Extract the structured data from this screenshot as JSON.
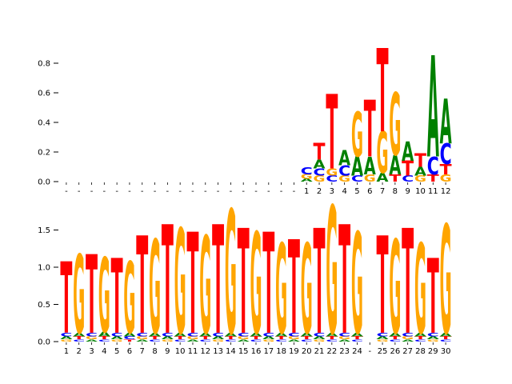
{
  "figure": {
    "background": "#ffffff"
  },
  "letter_colors": {
    "A": "#008000",
    "C": "#0000FF",
    "G": "#FFA500",
    "T": "#FF0000"
  },
  "chart_data": [
    {
      "type": "sequence_logo",
      "panel": "top",
      "title": "",
      "xlabel": "",
      "ylabel": "",
      "grid": false,
      "legend": null,
      "yticks": [
        0.0,
        0.2,
        0.4,
        0.6,
        0.8
      ],
      "ylim": [
        0,
        0.95
      ],
      "columns": [
        {
          "x": "-",
          "stack": []
        },
        {
          "x": "-",
          "stack": []
        },
        {
          "x": "-",
          "stack": []
        },
        {
          "x": "-",
          "stack": []
        },
        {
          "x": "-",
          "stack": []
        },
        {
          "x": "-",
          "stack": []
        },
        {
          "x": "-",
          "stack": []
        },
        {
          "x": "-",
          "stack": []
        },
        {
          "x": "-",
          "stack": []
        },
        {
          "x": "-",
          "stack": []
        },
        {
          "x": "-",
          "stack": []
        },
        {
          "x": "-",
          "stack": []
        },
        {
          "x": "-",
          "stack": []
        },
        {
          "x": "-",
          "stack": []
        },
        {
          "x": "-",
          "stack": []
        },
        {
          "x": "-",
          "stack": []
        },
        {
          "x": "-",
          "stack": []
        },
        {
          "x": "-",
          "stack": []
        },
        {
          "x": "-",
          "stack": []
        },
        {
          "x": "1",
          "stack": [
            [
              "A",
              0.02
            ],
            [
              "G",
              0.03
            ],
            [
              "C",
              0.05
            ]
          ]
        },
        {
          "x": "2",
          "stack": [
            [
              "G",
              0.04
            ],
            [
              "C",
              0.05
            ],
            [
              "A",
              0.06
            ],
            [
              "T",
              0.11
            ]
          ]
        },
        {
          "x": "3",
          "stack": [
            [
              "C",
              0.04
            ],
            [
              "G",
              0.05
            ],
            [
              "T",
              0.5
            ]
          ]
        },
        {
          "x": "4",
          "stack": [
            [
              "G",
              0.04
            ],
            [
              "C",
              0.07
            ],
            [
              "A",
              0.1
            ]
          ]
        },
        {
          "x": "5",
          "stack": [
            [
              "C",
              0.04
            ],
            [
              "A",
              0.13
            ],
            [
              "G",
              0.3
            ]
          ]
        },
        {
          "x": "6",
          "stack": [
            [
              "G",
              0.05
            ],
            [
              "A",
              0.12
            ],
            [
              "T",
              0.38
            ]
          ]
        },
        {
          "x": "7",
          "stack": [
            [
              "A",
              0.06
            ],
            [
              "G",
              0.28
            ],
            [
              "T",
              0.56
            ]
          ]
        },
        {
          "x": "8",
          "stack": [
            [
              "T",
              0.05
            ],
            [
              "A",
              0.13
            ],
            [
              "G",
              0.42
            ]
          ]
        },
        {
          "x": "9",
          "stack": [
            [
              "C",
              0.04
            ],
            [
              "T",
              0.1
            ],
            [
              "A",
              0.13
            ]
          ]
        },
        {
          "x": "10",
          "stack": [
            [
              "G",
              0.04
            ],
            [
              "A",
              0.06
            ],
            [
              "T",
              0.09
            ]
          ]
        },
        {
          "x": "11",
          "stack": [
            [
              "T",
              0.05
            ],
            [
              "C",
              0.12
            ],
            [
              "A",
              0.68
            ]
          ]
        },
        {
          "x": "12",
          "stack": [
            [
              "G",
              0.05
            ],
            [
              "T",
              0.07
            ],
            [
              "C",
              0.14
            ],
            [
              "A",
              0.3
            ]
          ]
        }
      ]
    },
    {
      "type": "sequence_logo",
      "panel": "bottom",
      "title": "",
      "xlabel": "",
      "ylabel": "",
      "grid": false,
      "legend": null,
      "yticks": [
        0.0,
        0.5,
        1.0,
        1.5
      ],
      "ylim": [
        0,
        1.9
      ],
      "columns": [
        {
          "x": "1",
          "stack": [
            [
              "G",
              0.03
            ],
            [
              "A",
              0.04
            ],
            [
              "C",
              0.05
            ],
            [
              "T",
              0.95
            ]
          ]
        },
        {
          "x": "2",
          "stack": [
            [
              "C",
              0.03
            ],
            [
              "T",
              0.04
            ],
            [
              "A",
              0.05
            ],
            [
              "G",
              1.05
            ]
          ]
        },
        {
          "x": "3",
          "stack": [
            [
              "A",
              0.03
            ],
            [
              "G",
              0.04
            ],
            [
              "C",
              0.05
            ],
            [
              "T",
              1.05
            ]
          ]
        },
        {
          "x": "4",
          "stack": [
            [
              "C",
              0.03
            ],
            [
              "T",
              0.04
            ],
            [
              "A",
              0.06
            ],
            [
              "G",
              1.0
            ]
          ]
        },
        {
          "x": "5",
          "stack": [
            [
              "G",
              0.03
            ],
            [
              "A",
              0.04
            ],
            [
              "C",
              0.05
            ],
            [
              "T",
              1.0
            ]
          ]
        },
        {
          "x": "6",
          "stack": [
            [
              "T",
              0.03
            ],
            [
              "C",
              0.04
            ],
            [
              "A",
              0.05
            ],
            [
              "G",
              0.95
            ]
          ]
        },
        {
          "x": "7",
          "stack": [
            [
              "A",
              0.03
            ],
            [
              "G",
              0.04
            ],
            [
              "C",
              0.05
            ],
            [
              "T",
              1.3
            ]
          ]
        },
        {
          "x": "8",
          "stack": [
            [
              "C",
              0.03
            ],
            [
              "T",
              0.04
            ],
            [
              "A",
              0.05
            ],
            [
              "G",
              1.25
            ]
          ]
        },
        {
          "x": "9",
          "stack": [
            [
              "G",
              0.03
            ],
            [
              "A",
              0.04
            ],
            [
              "C",
              0.05
            ],
            [
              "T",
              1.45
            ]
          ]
        },
        {
          "x": "10",
          "stack": [
            [
              "C",
              0.03
            ],
            [
              "T",
              0.04
            ],
            [
              "A",
              0.05
            ],
            [
              "G",
              1.4
            ]
          ]
        },
        {
          "x": "11",
          "stack": [
            [
              "A",
              0.03
            ],
            [
              "G",
              0.04
            ],
            [
              "C",
              0.05
            ],
            [
              "T",
              1.35
            ]
          ]
        },
        {
          "x": "12",
          "stack": [
            [
              "C",
              0.03
            ],
            [
              "T",
              0.04
            ],
            [
              "A",
              0.05
            ],
            [
              "G",
              1.3
            ]
          ]
        },
        {
          "x": "13",
          "stack": [
            [
              "G",
              0.03
            ],
            [
              "A",
              0.04
            ],
            [
              "C",
              0.05
            ],
            [
              "T",
              1.45
            ]
          ]
        },
        {
          "x": "14",
          "stack": [
            [
              "C",
              0.03
            ],
            [
              "T",
              0.04
            ],
            [
              "A",
              0.05
            ],
            [
              "G",
              1.65
            ]
          ]
        },
        {
          "x": "15",
          "stack": [
            [
              "A",
              0.03
            ],
            [
              "G",
              0.04
            ],
            [
              "C",
              0.05
            ],
            [
              "T",
              1.4
            ]
          ]
        },
        {
          "x": "16",
          "stack": [
            [
              "C",
              0.03
            ],
            [
              "T",
              0.04
            ],
            [
              "A",
              0.05
            ],
            [
              "G",
              1.35
            ]
          ]
        },
        {
          "x": "17",
          "stack": [
            [
              "G",
              0.03
            ],
            [
              "A",
              0.04
            ],
            [
              "C",
              0.05
            ],
            [
              "T",
              1.35
            ]
          ]
        },
        {
          "x": "18",
          "stack": [
            [
              "C",
              0.03
            ],
            [
              "T",
              0.04
            ],
            [
              "A",
              0.05
            ],
            [
              "G",
              1.2
            ]
          ]
        },
        {
          "x": "19",
          "stack": [
            [
              "A",
              0.03
            ],
            [
              "G",
              0.04
            ],
            [
              "C",
              0.05
            ],
            [
              "T",
              1.25
            ]
          ]
        },
        {
          "x": "20",
          "stack": [
            [
              "C",
              0.03
            ],
            [
              "T",
              0.04
            ],
            [
              "A",
              0.05
            ],
            [
              "G",
              1.2
            ]
          ]
        },
        {
          "x": "21",
          "stack": [
            [
              "G",
              0.03
            ],
            [
              "A",
              0.04
            ],
            [
              "C",
              0.05
            ],
            [
              "T",
              1.4
            ]
          ]
        },
        {
          "x": "22",
          "stack": [
            [
              "C",
              0.03
            ],
            [
              "T",
              0.04
            ],
            [
              "A",
              0.05
            ],
            [
              "G",
              1.7
            ]
          ]
        },
        {
          "x": "23",
          "stack": [
            [
              "A",
              0.03
            ],
            [
              "G",
              0.04
            ],
            [
              "C",
              0.05
            ],
            [
              "T",
              1.45
            ]
          ]
        },
        {
          "x": "24",
          "stack": [
            [
              "C",
              0.03
            ],
            [
              "T",
              0.04
            ],
            [
              "A",
              0.05
            ],
            [
              "G",
              1.35
            ]
          ]
        },
        {
          "x": "-",
          "stack": []
        },
        {
          "x": "25",
          "stack": [
            [
              "G",
              0.03
            ],
            [
              "A",
              0.04
            ],
            [
              "C",
              0.05
            ],
            [
              "T",
              1.3
            ]
          ]
        },
        {
          "x": "26",
          "stack": [
            [
              "C",
              0.03
            ],
            [
              "T",
              0.04
            ],
            [
              "A",
              0.05
            ],
            [
              "G",
              1.25
            ]
          ]
        },
        {
          "x": "27",
          "stack": [
            [
              "A",
              0.03
            ],
            [
              "G",
              0.04
            ],
            [
              "C",
              0.05
            ],
            [
              "T",
              1.4
            ]
          ]
        },
        {
          "x": "28",
          "stack": [
            [
              "C",
              0.03
            ],
            [
              "T",
              0.04
            ],
            [
              "A",
              0.05
            ],
            [
              "G",
              1.2
            ]
          ]
        },
        {
          "x": "29",
          "stack": [
            [
              "G",
              0.03
            ],
            [
              "A",
              0.04
            ],
            [
              "C",
              0.05
            ],
            [
              "T",
              1.0
            ]
          ]
        },
        {
          "x": "30",
          "stack": [
            [
              "C",
              0.03
            ],
            [
              "T",
              0.04
            ],
            [
              "A",
              0.05
            ],
            [
              "G",
              1.45
            ]
          ]
        }
      ]
    }
  ]
}
